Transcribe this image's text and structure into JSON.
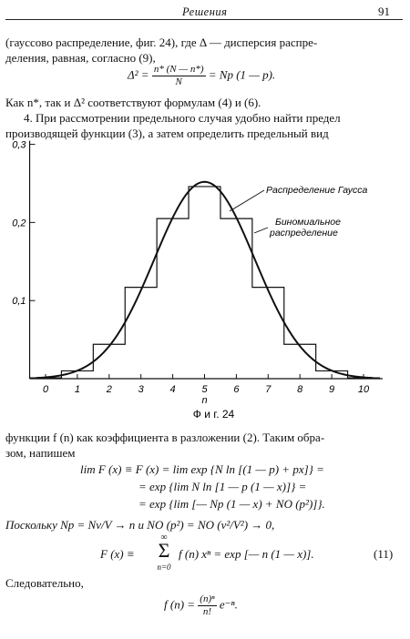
{
  "header": {
    "title": "Решения",
    "page": "91"
  },
  "para1": {
    "line1": "(гауссово распределение, фиг. 24), где Δ — дисперсия распре-",
    "line2": "деления, равная, согласно (9),"
  },
  "eq1": {
    "lhs": "Δ² =",
    "num": "n* (N — n*)",
    "den": "N",
    "rhs": "= Np (1 — p)."
  },
  "para2": {
    "line": "Как n*, так и Δ² соответствуют формулам (4) и (6)."
  },
  "para3": {
    "line1": "4. При рассмотрении предельного случая удобно найти предел",
    "line2": "производящей функции (3), а затем определить предельный вид"
  },
  "chart_data": {
    "type": "line",
    "title": "",
    "xlabel": "n",
    "ylabel": "",
    "xlim": [
      -0.5,
      10.5
    ],
    "ylim": [
      0,
      0.3
    ],
    "x_ticks": [
      "0",
      "1",
      "2",
      "3",
      "4",
      "5",
      "6",
      "7",
      "8",
      "9",
      "10"
    ],
    "y_ticks": [
      "0,3",
      "0,2",
      "0,1"
    ],
    "series": [
      {
        "name": "Биномиальное распределение",
        "style": "step",
        "x": [
          0,
          1,
          2,
          3,
          4,
          5,
          6,
          7,
          8,
          9,
          10
        ],
        "values": [
          0.001,
          0.01,
          0.044,
          0.117,
          0.205,
          0.246,
          0.205,
          0.117,
          0.044,
          0.01,
          0.001
        ]
      },
      {
        "name": "Распределение Гаусса",
        "style": "smooth",
        "mean": 5,
        "variance": 2.5,
        "peak": 0.252
      }
    ],
    "caption": "Ф и г. 24",
    "annotations": {
      "gauss": "Распределение Гаусса",
      "binom1": "Биномиальное",
      "binom2": "распределение"
    }
  },
  "para4": {
    "line1": "функции f (n) как коэффициента в разложении (2). Таким обра-",
    "line2": "зом, напишем"
  },
  "eq2": {
    "l1": "lim F (x) ≡ F (x) = lim exp {N ln [(1 — p) + px]} =",
    "l2": "= exp {lim N ln [1 — p (1 — x)]} =",
    "l3": "= exp {lim [— Np (1 — x) + NO (p²)]}."
  },
  "para5": {
    "line": "Поскольку  Np = Nv/V → n  и  NO (p²) = NO (v²/V²) → 0,"
  },
  "eq3": {
    "lhs": "F (x) ≡",
    "sum_top": "∞",
    "sum": "Σ",
    "sum_bot": "n=0",
    "rhs": "f (n) xⁿ = exp [— n (1 — x)].",
    "number": "(11)"
  },
  "para6": {
    "line": "Следовательно,"
  },
  "eq4": {
    "lhs": "f (n) =",
    "num": "(n)ⁿ",
    "den": "n!",
    "rhs": "e⁻ⁿ."
  }
}
